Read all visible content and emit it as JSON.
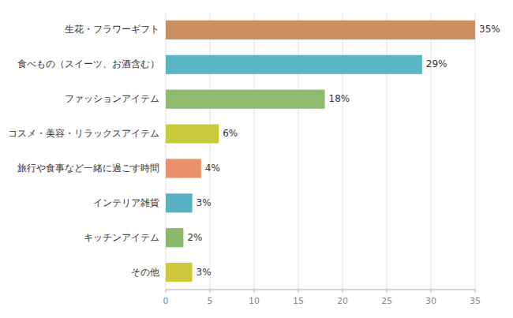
{
  "chart_data": {
    "type": "bar",
    "orientation": "horizontal",
    "categories": [
      "その他",
      "キッチンアイテム",
      "インテリア雑貨",
      "旅行や食事など一緒に過ごす時間",
      "コスメ・美容・リラックスアイテム",
      "ファッションアイテム",
      "食べもの（スイーツ、お酒含む）",
      "生花・フラワーギフト"
    ],
    "values": [
      3,
      2,
      3,
      4,
      6,
      18,
      29,
      35
    ],
    "value_labels": [
      "3%",
      "2%",
      "3%",
      "4%",
      "6%",
      "18%",
      "29%",
      "35%"
    ],
    "colors": [
      "#cec93a",
      "#8ab96b",
      "#5ab0c5",
      "#e8916a",
      "#c8cc3a",
      "#8fbb6e",
      "#5ab5c4",
      "#cc9060"
    ],
    "xlim": [
      0,
      35
    ],
    "xticks": [
      0,
      5,
      10,
      15,
      20,
      25,
      30,
      35
    ],
    "grid": true,
    "data_labels": true
  }
}
